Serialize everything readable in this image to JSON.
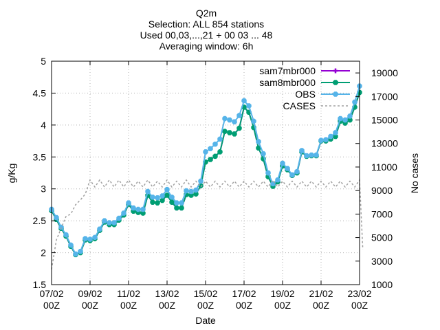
{
  "chart_data": {
    "type": "line",
    "title_lines": [
      "Q2m",
      "Selection: ALL    854 stations",
      "Used 00,03,...,21 + 00 03 ... 48",
      "Averaging window:  6h"
    ],
    "xlabel": "Date",
    "ylabel": "g/Kg",
    "y2label": "No cases",
    "x_unit": "hours since 07/02 00Z",
    "xlim": [
      0,
      384
    ],
    "ylim": [
      1.5,
      5
    ],
    "y2lim": [
      1000,
      20000
    ],
    "x_ticks": [
      {
        "x": 0,
        "line1": "07/02",
        "line2": "00Z"
      },
      {
        "x": 48,
        "line1": "09/02",
        "line2": "00Z"
      },
      {
        "x": 96,
        "line1": "11/02",
        "line2": "00Z"
      },
      {
        "x": 144,
        "line1": "13/02",
        "line2": "00Z"
      },
      {
        "x": 192,
        "line1": "15/02",
        "line2": "00Z"
      },
      {
        "x": 240,
        "line1": "17/02",
        "line2": "00Z"
      },
      {
        "x": 288,
        "line1": "19/02",
        "line2": "00Z"
      },
      {
        "x": 336,
        "line1": "21/02",
        "line2": "00Z"
      },
      {
        "x": 384,
        "line1": "23/02",
        "line2": "00Z"
      }
    ],
    "y_ticks": [
      "1.5",
      "2",
      "2.5",
      "3",
      "3.5",
      "4",
      "4.5",
      "5"
    ],
    "y2_ticks": [
      "1000",
      "3000",
      "5000",
      "7000",
      "9000",
      "11000",
      "13000",
      "15000",
      "17000",
      "19000"
    ],
    "legend_position": "top-right",
    "series": [
      {
        "name": "sam7mbr000",
        "axis": "y",
        "color": "#9400d3",
        "style": "line-points",
        "points": [
          [
            0,
            2.66
          ],
          [
            6,
            2.52
          ],
          [
            12,
            2.38
          ],
          [
            18,
            2.26
          ],
          [
            24,
            2.1
          ],
          [
            30,
            1.97
          ],
          [
            36,
            2.0
          ],
          [
            42,
            2.2
          ],
          [
            48,
            2.19
          ],
          [
            54,
            2.22
          ],
          [
            60,
            2.35
          ],
          [
            66,
            2.48
          ],
          [
            72,
            2.44
          ],
          [
            78,
            2.44
          ],
          [
            84,
            2.51
          ],
          [
            90,
            2.59
          ],
          [
            96,
            2.76
          ],
          [
            102,
            2.65
          ],
          [
            108,
            2.63
          ],
          [
            114,
            2.62
          ],
          [
            120,
            2.9
          ],
          [
            126,
            2.79
          ],
          [
            132,
            2.78
          ],
          [
            138,
            2.82
          ],
          [
            144,
            2.9
          ],
          [
            150,
            2.79
          ],
          [
            156,
            2.7
          ],
          [
            162,
            2.7
          ],
          [
            168,
            2.91
          ],
          [
            174,
            2.9
          ],
          [
            180,
            2.92
          ],
          [
            186,
            3.05
          ],
          [
            192,
            3.42
          ],
          [
            198,
            3.46
          ],
          [
            204,
            3.51
          ],
          [
            210,
            3.58
          ],
          [
            216,
            3.9
          ],
          [
            222,
            3.88
          ],
          [
            228,
            3.86
          ],
          [
            234,
            3.95
          ],
          [
            240,
            4.28
          ],
          [
            246,
            4.2
          ],
          [
            252,
            3.96
          ],
          [
            258,
            3.64
          ],
          [
            264,
            3.47
          ],
          [
            270,
            3.19
          ],
          [
            276,
            3.04
          ],
          [
            282,
            3.11
          ],
          [
            288,
            3.36
          ],
          [
            294,
            3.3
          ],
          [
            300,
            3.21
          ],
          [
            306,
            3.25
          ],
          [
            312,
            3.58
          ],
          [
            318,
            3.51
          ],
          [
            324,
            3.52
          ],
          [
            330,
            3.52
          ],
          [
            336,
            3.75
          ],
          [
            342,
            3.75
          ],
          [
            348,
            3.78
          ],
          [
            354,
            3.82
          ],
          [
            360,
            4.06
          ],
          [
            366,
            4.03
          ],
          [
            372,
            4.08
          ],
          [
            378,
            4.28
          ],
          [
            384,
            4.51
          ]
        ]
      },
      {
        "name": "sam8mbr000",
        "axis": "y",
        "color": "#009e73",
        "style": "line-points",
        "points": [
          [
            0,
            2.66
          ],
          [
            6,
            2.52
          ],
          [
            12,
            2.38
          ],
          [
            18,
            2.26
          ],
          [
            24,
            2.1
          ],
          [
            30,
            1.97
          ],
          [
            36,
            2.0
          ],
          [
            42,
            2.2
          ],
          [
            48,
            2.19
          ],
          [
            54,
            2.22
          ],
          [
            60,
            2.35
          ],
          [
            66,
            2.48
          ],
          [
            72,
            2.44
          ],
          [
            78,
            2.44
          ],
          [
            84,
            2.51
          ],
          [
            90,
            2.59
          ],
          [
            96,
            2.76
          ],
          [
            102,
            2.65
          ],
          [
            108,
            2.63
          ],
          [
            114,
            2.62
          ],
          [
            120,
            2.9
          ],
          [
            126,
            2.79
          ],
          [
            132,
            2.78
          ],
          [
            138,
            2.82
          ],
          [
            144,
            2.9
          ],
          [
            150,
            2.79
          ],
          [
            156,
            2.7
          ],
          [
            162,
            2.7
          ],
          [
            168,
            2.91
          ],
          [
            174,
            2.9
          ],
          [
            180,
            2.92
          ],
          [
            186,
            3.05
          ],
          [
            192,
            3.42
          ],
          [
            198,
            3.46
          ],
          [
            204,
            3.51
          ],
          [
            210,
            3.58
          ],
          [
            216,
            3.9
          ],
          [
            222,
            3.88
          ],
          [
            228,
            3.86
          ],
          [
            234,
            3.95
          ],
          [
            240,
            4.28
          ],
          [
            246,
            4.2
          ],
          [
            252,
            3.96
          ],
          [
            258,
            3.64
          ],
          [
            264,
            3.47
          ],
          [
            270,
            3.19
          ],
          [
            276,
            3.04
          ],
          [
            282,
            3.11
          ],
          [
            288,
            3.36
          ],
          [
            294,
            3.3
          ],
          [
            300,
            3.21
          ],
          [
            306,
            3.25
          ],
          [
            312,
            3.58
          ],
          [
            318,
            3.51
          ],
          [
            324,
            3.52
          ],
          [
            330,
            3.52
          ],
          [
            336,
            3.75
          ],
          [
            342,
            3.75
          ],
          [
            348,
            3.78
          ],
          [
            354,
            3.82
          ],
          [
            360,
            4.06
          ],
          [
            366,
            4.03
          ],
          [
            372,
            4.08
          ],
          [
            378,
            4.28
          ],
          [
            384,
            4.51
          ]
        ]
      },
      {
        "name": "OBS",
        "axis": "y",
        "color": "#56b4e9",
        "style": "line-points",
        "points": [
          [
            0,
            2.68
          ],
          [
            6,
            2.55
          ],
          [
            12,
            2.4
          ],
          [
            18,
            2.28
          ],
          [
            24,
            2.12
          ],
          [
            30,
            1.98
          ],
          [
            36,
            2.02
          ],
          [
            42,
            2.22
          ],
          [
            48,
            2.21
          ],
          [
            54,
            2.24
          ],
          [
            60,
            2.37
          ],
          [
            66,
            2.5
          ],
          [
            72,
            2.47
          ],
          [
            78,
            2.47
          ],
          [
            84,
            2.54
          ],
          [
            90,
            2.62
          ],
          [
            96,
            2.78
          ],
          [
            102,
            2.7
          ],
          [
            108,
            2.68
          ],
          [
            114,
            2.68
          ],
          [
            120,
            2.96
          ],
          [
            126,
            2.87
          ],
          [
            132,
            2.86
          ],
          [
            138,
            2.89
          ],
          [
            144,
            2.99
          ],
          [
            150,
            2.87
          ],
          [
            156,
            2.78
          ],
          [
            162,
            2.78
          ],
          [
            168,
            2.97
          ],
          [
            174,
            2.96
          ],
          [
            180,
            2.98
          ],
          [
            186,
            3.12
          ],
          [
            192,
            3.58
          ],
          [
            198,
            3.63
          ],
          [
            204,
            3.7
          ],
          [
            210,
            3.78
          ],
          [
            216,
            4.1
          ],
          [
            222,
            4.08
          ],
          [
            228,
            4.05
          ],
          [
            234,
            4.15
          ],
          [
            240,
            4.38
          ],
          [
            246,
            4.3
          ],
          [
            252,
            4.06
          ],
          [
            258,
            3.74
          ],
          [
            264,
            3.55
          ],
          [
            270,
            3.25
          ],
          [
            276,
            3.08
          ],
          [
            282,
            3.14
          ],
          [
            288,
            3.4
          ],
          [
            294,
            3.32
          ],
          [
            300,
            3.22
          ],
          [
            306,
            3.27
          ],
          [
            312,
            3.6
          ],
          [
            318,
            3.52
          ],
          [
            324,
            3.53
          ],
          [
            330,
            3.53
          ],
          [
            336,
            3.76
          ],
          [
            342,
            3.77
          ],
          [
            348,
            3.82
          ],
          [
            354,
            3.88
          ],
          [
            360,
            4.1
          ],
          [
            366,
            4.08
          ],
          [
            372,
            4.14
          ],
          [
            378,
            4.36
          ],
          [
            384,
            4.61
          ]
        ]
      },
      {
        "name": "CASES",
        "axis": "y2",
        "color": "#a0a0a0",
        "style": "dashed",
        "points": [
          [
            0,
            2300
          ],
          [
            6,
            4800
          ],
          [
            12,
            5800
          ],
          [
            18,
            6800
          ],
          [
            24,
            7000
          ],
          [
            30,
            7800
          ],
          [
            36,
            8200
          ],
          [
            42,
            8700
          ],
          [
            48,
            9900
          ],
          [
            54,
            9300
          ],
          [
            60,
            9900
          ],
          [
            66,
            9300
          ],
          [
            72,
            9900
          ],
          [
            78,
            9300
          ],
          [
            84,
            9900
          ],
          [
            90,
            9300
          ],
          [
            96,
            9900
          ],
          [
            102,
            9300
          ],
          [
            108,
            9800
          ],
          [
            114,
            9300
          ],
          [
            120,
            9900
          ],
          [
            126,
            9300
          ],
          [
            132,
            9800
          ],
          [
            138,
            9300
          ],
          [
            144,
            9900
          ],
          [
            150,
            9300
          ],
          [
            156,
            9800
          ],
          [
            162,
            9300
          ],
          [
            168,
            9900
          ],
          [
            174,
            9300
          ],
          [
            180,
            9800
          ],
          [
            186,
            9300
          ],
          [
            192,
            9800
          ],
          [
            198,
            9300
          ],
          [
            204,
            9800
          ],
          [
            210,
            9300
          ],
          [
            216,
            9800
          ],
          [
            222,
            9300
          ],
          [
            228,
            9800
          ],
          [
            234,
            9300
          ],
          [
            240,
            9800
          ],
          [
            246,
            9300
          ],
          [
            252,
            9800
          ],
          [
            258,
            9300
          ],
          [
            264,
            9800
          ],
          [
            270,
            9300
          ],
          [
            276,
            9900
          ],
          [
            282,
            9300
          ],
          [
            288,
            9800
          ],
          [
            294,
            9300
          ],
          [
            300,
            9800
          ],
          [
            306,
            9300
          ],
          [
            312,
            9800
          ],
          [
            318,
            9300
          ],
          [
            324,
            9800
          ],
          [
            330,
            9300
          ],
          [
            336,
            9800
          ],
          [
            342,
            9300
          ],
          [
            348,
            9800
          ],
          [
            354,
            9300
          ],
          [
            360,
            9800
          ],
          [
            366,
            9300
          ],
          [
            372,
            9800
          ],
          [
            378,
            9300
          ],
          [
            384,
            9900
          ],
          [
            388,
            4000
          ]
        ]
      }
    ]
  }
}
